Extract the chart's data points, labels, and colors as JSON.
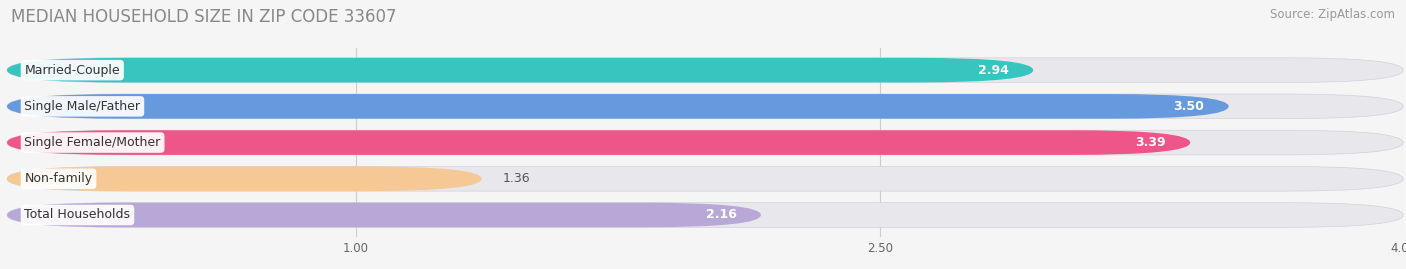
{
  "title": "MEDIAN HOUSEHOLD SIZE IN ZIP CODE 33607",
  "source": "Source: ZipAtlas.com",
  "categories": [
    "Married-Couple",
    "Single Male/Father",
    "Single Female/Mother",
    "Non-family",
    "Total Households"
  ],
  "values": [
    2.94,
    3.5,
    3.39,
    1.36,
    2.16
  ],
  "bar_colors": [
    "#38c5c0",
    "#6699dd",
    "#ee5588",
    "#f5c896",
    "#b8a8d8"
  ],
  "background_color": "#f5f5f5",
  "bar_bg_color": "#e8e8ec",
  "xmin": 0.0,
  "xmax": 4.0,
  "xticks": [
    1.0,
    2.5,
    4.0
  ],
  "title_fontsize": 12,
  "source_fontsize": 8.5,
  "label_fontsize": 9,
  "value_fontsize": 9,
  "bar_height": 0.68,
  "bar_gap": 0.32
}
